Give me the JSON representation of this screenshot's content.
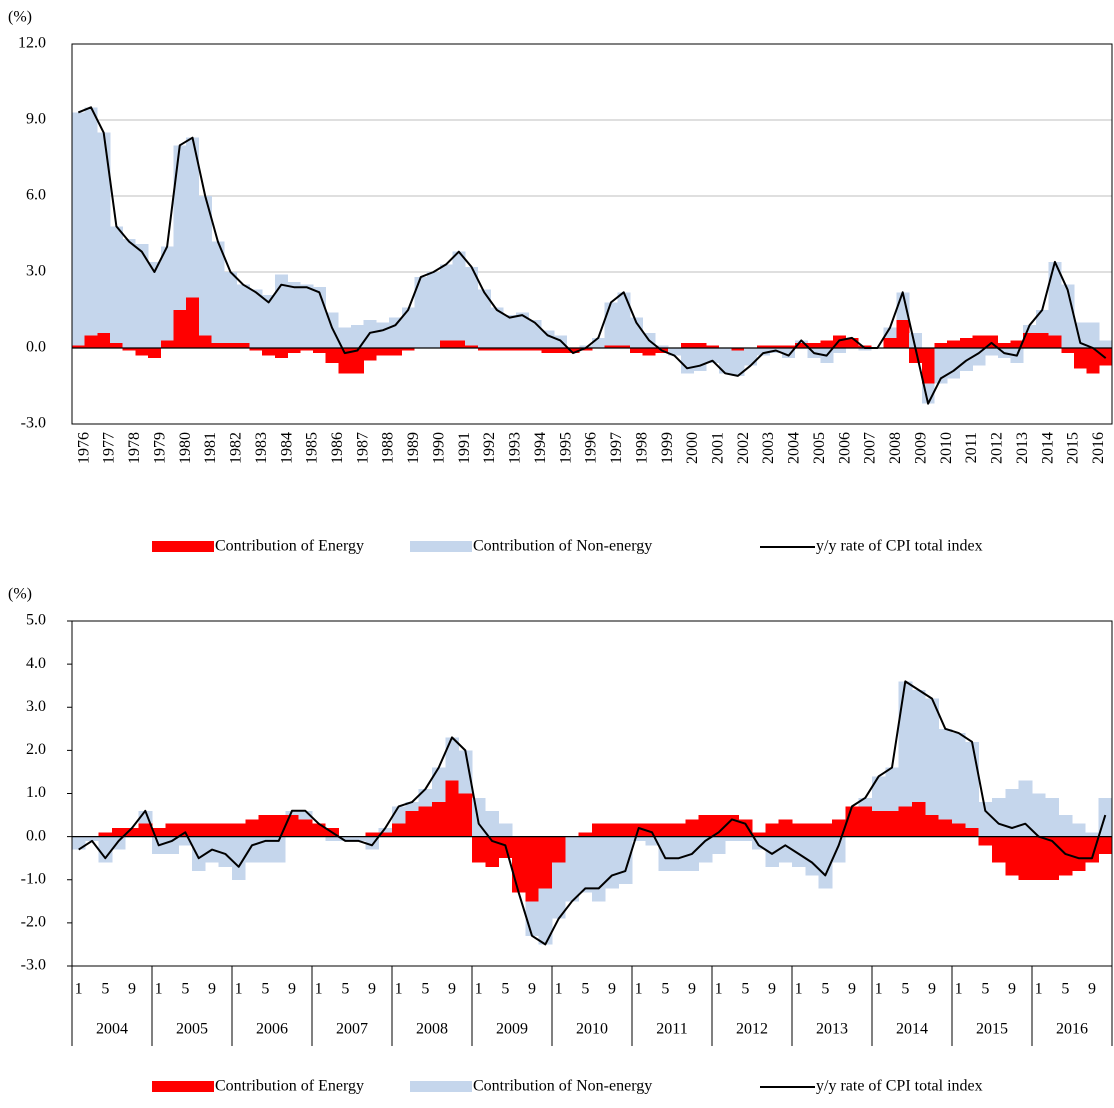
{
  "chart_data": [
    {
      "type": "combo",
      "y_label": "(%)",
      "grid": true,
      "x_label_rotation": -90,
      "categories": [
        "1976",
        null,
        "1977",
        null,
        "1978",
        null,
        "1979",
        null,
        "1980",
        null,
        "1981",
        null,
        "1982",
        null,
        "1983",
        null,
        "1984",
        null,
        "1985",
        null,
        "1986",
        null,
        "1987",
        null,
        "1988",
        null,
        "1989",
        null,
        "1990",
        null,
        "1991",
        null,
        "1992",
        null,
        "1993",
        null,
        "1994",
        null,
        "1995",
        null,
        "1996",
        null,
        "1997",
        null,
        "1998",
        null,
        "1999",
        null,
        "2000",
        null,
        "2001",
        null,
        "2002",
        null,
        "2003",
        null,
        "2004",
        null,
        "2005",
        null,
        "2006",
        null,
        "2007",
        null,
        "2008",
        null,
        "2009",
        null,
        "2010",
        null,
        "2011",
        null,
        "2012",
        null,
        "2013",
        null,
        "2014",
        null,
        "2015",
        null,
        "2016",
        null
      ],
      "ylim": [
        -3,
        12
      ],
      "yticks": [
        {
          "value": 12,
          "label": "12.0"
        },
        {
          "value": 9,
          "label": "9.0"
        },
        {
          "value": 6,
          "label": "6.0"
        },
        {
          "value": 3,
          "label": "3.0"
        },
        {
          "value": 0,
          "label": "0.0"
        },
        {
          "value": -3,
          "label": "-3.0"
        }
      ],
      "series": [
        {
          "name": "Contribution of Energy",
          "color": "#ff0000",
          "type": "bar",
          "values": [
            0.1,
            0.5,
            0.6,
            0.2,
            -0.1,
            -0.3,
            -0.4,
            0.3,
            1.5,
            2.0,
            0.5,
            0.2,
            0.2,
            0.2,
            -0.1,
            -0.3,
            -0.4,
            -0.2,
            -0.1,
            -0.2,
            -0.6,
            -1.0,
            -1.0,
            -0.5,
            -0.3,
            -0.3,
            -0.1,
            0.0,
            0.0,
            0.3,
            0.3,
            0.1,
            -0.1,
            -0.1,
            -0.1,
            -0.1,
            -0.1,
            -0.2,
            -0.2,
            -0.2,
            -0.1,
            0.0,
            0.1,
            0.1,
            -0.2,
            -0.3,
            -0.2,
            0.0,
            0.2,
            0.2,
            0.1,
            0.0,
            -0.1,
            0.0,
            0.1,
            0.1,
            0.1,
            0.2,
            0.2,
            0.3,
            0.5,
            0.4,
            0.1,
            0.0,
            0.4,
            1.1,
            -0.6,
            -1.4,
            0.2,
            0.3,
            0.4,
            0.5,
            0.5,
            0.2,
            0.3,
            0.6,
            0.6,
            0.5,
            -0.2,
            -0.8,
            -1.0,
            -0.7
          ]
        },
        {
          "name": "Contribution of Non-energy",
          "color": "#c5d6ec",
          "type": "bar",
          "values": [
            9.2,
            9.0,
            7.9,
            4.6,
            4.3,
            4.1,
            3.4,
            3.7,
            6.5,
            6.3,
            5.5,
            4.0,
            2.8,
            2.3,
            2.3,
            2.1,
            2.9,
            2.6,
            2.5,
            2.4,
            1.4,
            0.8,
            0.9,
            1.1,
            1.0,
            1.2,
            1.6,
            2.8,
            3.0,
            3.0,
            3.5,
            3.1,
            2.3,
            1.6,
            1.3,
            1.4,
            1.1,
            0.7,
            0.5,
            0.0,
            0.1,
            0.4,
            1.7,
            2.1,
            1.2,
            0.6,
            0.1,
            -0.3,
            -1.0,
            -0.9,
            -0.6,
            -1.0,
            -1.0,
            -0.7,
            -0.3,
            -0.2,
            -0.4,
            0.1,
            -0.4,
            -0.6,
            -0.2,
            0.0,
            -0.1,
            0.0,
            0.4,
            1.1,
            0.6,
            -0.8,
            -1.4,
            -1.2,
            -0.9,
            -0.7,
            -0.3,
            -0.4,
            -0.6,
            0.3,
            0.9,
            2.9,
            2.5,
            1.0,
            1.0,
            0.3
          ]
        },
        {
          "name": "y/y rate of CPI total index",
          "color": "#000000",
          "type": "line",
          "values": [
            9.3,
            9.5,
            8.5,
            4.8,
            4.2,
            3.8,
            3.0,
            4.0,
            8.0,
            8.3,
            6.0,
            4.2,
            3.0,
            2.5,
            2.2,
            1.8,
            2.5,
            2.4,
            2.4,
            2.2,
            0.8,
            -0.2,
            -0.1,
            0.6,
            0.7,
            0.9,
            1.5,
            2.8,
            3.0,
            3.3,
            3.8,
            3.2,
            2.2,
            1.5,
            1.2,
            1.3,
            1.0,
            0.5,
            0.3,
            -0.2,
            0.0,
            0.4,
            1.8,
            2.2,
            1.0,
            0.3,
            -0.1,
            -0.3,
            -0.8,
            -0.7,
            -0.5,
            -1.0,
            -1.1,
            -0.7,
            -0.2,
            -0.1,
            -0.3,
            0.3,
            -0.2,
            -0.3,
            0.3,
            0.4,
            0.0,
            0.0,
            0.8,
            2.2,
            0.0,
            -2.2,
            -1.2,
            -0.9,
            -0.5,
            -0.2,
            0.2,
            -0.2,
            -0.3,
            0.9,
            1.5,
            3.4,
            2.3,
            0.2,
            0.0,
            -0.4
          ]
        }
      ]
    },
    {
      "type": "combo",
      "y_label": "(%)",
      "grid": false,
      "categories": [
        "1",
        null,
        "5",
        null,
        "9",
        null,
        "1",
        null,
        "5",
        null,
        "9",
        null,
        "1",
        null,
        "5",
        null,
        "9",
        null,
        "1",
        null,
        "5",
        null,
        "9",
        null,
        "1",
        null,
        "5",
        null,
        "9",
        null,
        "1",
        null,
        "5",
        null,
        "9",
        null,
        "1",
        null,
        "5",
        null,
        "9",
        null,
        "1",
        null,
        "5",
        null,
        "9",
        null,
        "1",
        null,
        "5",
        null,
        "9",
        null,
        "1",
        null,
        "5",
        null,
        "9",
        null,
        "1",
        null,
        "5",
        null,
        "9",
        null,
        "1",
        null,
        "5",
        null,
        "9",
        null,
        "1",
        null,
        "5",
        null,
        "9",
        null
      ],
      "groups": [
        "2004",
        "2005",
        "2006",
        "2007",
        "2008",
        "2009",
        "2010",
        "2011",
        "2012",
        "2013",
        "2014",
        "2015",
        "2016"
      ],
      "ylim": [
        -3,
        5
      ],
      "yticks": [
        {
          "value": 5,
          "label": "5.0"
        },
        {
          "value": 4,
          "label": "4.0"
        },
        {
          "value": 3,
          "label": "3.0"
        },
        {
          "value": 2,
          "label": "2.0"
        },
        {
          "value": 1,
          "label": "1.0"
        },
        {
          "value": 0,
          "label": "0.0"
        },
        {
          "value": -1,
          "label": "-1.0"
        },
        {
          "value": -2,
          "label": "-2.0"
        },
        {
          "value": -3,
          "label": "-3.0"
        }
      ],
      "series": [
        {
          "name": "Contribution of Energy",
          "color": "#ff0000",
          "type": "bar",
          "values": [
            0.0,
            0.0,
            0.1,
            0.2,
            0.2,
            0.3,
            0.2,
            0.3,
            0.3,
            0.3,
            0.3,
            0.3,
            0.3,
            0.4,
            0.5,
            0.5,
            0.5,
            0.4,
            0.3,
            0.2,
            0.0,
            0.0,
            0.1,
            0.1,
            0.3,
            0.6,
            0.7,
            0.8,
            1.3,
            1.0,
            -0.6,
            -0.7,
            -0.5,
            -1.3,
            -1.5,
            -1.2,
            -0.6,
            0.0,
            0.1,
            0.3,
            0.3,
            0.3,
            0.3,
            0.3,
            0.3,
            0.3,
            0.4,
            0.5,
            0.5,
            0.5,
            0.4,
            0.1,
            0.3,
            0.4,
            0.3,
            0.3,
            0.3,
            0.4,
            0.7,
            0.7,
            0.6,
            0.6,
            0.7,
            0.8,
            0.5,
            0.4,
            0.3,
            0.2,
            -0.2,
            -0.6,
            -0.9,
            -1.0,
            -1.0,
            -1.0,
            -0.9,
            -0.8,
            -0.6,
            -0.4
          ]
        },
        {
          "name": "Contribution of Non-energy",
          "color": "#c5d6ec",
          "type": "bar",
          "values": [
            -0.3,
            -0.1,
            -0.6,
            -0.3,
            0.0,
            0.3,
            -0.4,
            -0.4,
            -0.2,
            -0.8,
            -0.6,
            -0.7,
            -1.0,
            -0.6,
            -0.6,
            -0.6,
            0.1,
            0.2,
            0.0,
            -0.1,
            -0.1,
            -0.1,
            -0.3,
            0.1,
            0.4,
            0.2,
            0.4,
            0.8,
            1.0,
            1.0,
            0.9,
            0.6,
            0.3,
            0.0,
            -0.8,
            -1.3,
            -1.3,
            -1.5,
            -1.3,
            -1.5,
            -1.2,
            -1.1,
            -0.1,
            -0.2,
            -0.8,
            -0.8,
            -0.8,
            -0.6,
            -0.4,
            -0.1,
            -0.1,
            -0.3,
            -0.7,
            -0.6,
            -0.7,
            -0.9,
            -1.2,
            -0.6,
            0.0,
            0.2,
            0.8,
            1.0,
            2.9,
            2.6,
            2.7,
            2.1,
            2.1,
            2.0,
            0.8,
            0.9,
            1.1,
            1.3,
            1.0,
            0.9,
            0.5,
            0.3,
            0.1,
            0.9
          ]
        },
        {
          "name": "y/y rate of CPI total index",
          "color": "#000000",
          "type": "line",
          "values": [
            -0.3,
            -0.1,
            -0.5,
            -0.1,
            0.2,
            0.6,
            -0.2,
            -0.1,
            0.1,
            -0.5,
            -0.3,
            -0.4,
            -0.7,
            -0.2,
            -0.1,
            -0.1,
            0.6,
            0.6,
            0.3,
            0.1,
            -0.1,
            -0.1,
            -0.2,
            0.2,
            0.7,
            0.8,
            1.1,
            1.6,
            2.3,
            2.0,
            0.3,
            -0.1,
            -0.2,
            -1.3,
            -2.3,
            -2.5,
            -1.9,
            -1.5,
            -1.2,
            -1.2,
            -0.9,
            -0.8,
            0.2,
            0.1,
            -0.5,
            -0.5,
            -0.4,
            -0.1,
            0.1,
            0.4,
            0.3,
            -0.2,
            -0.4,
            -0.2,
            -0.4,
            -0.6,
            -0.9,
            -0.2,
            0.7,
            0.9,
            1.4,
            1.6,
            3.6,
            3.4,
            3.2,
            2.5,
            2.4,
            2.2,
            0.6,
            0.3,
            0.2,
            0.3,
            0.0,
            -0.1,
            -0.4,
            -0.5,
            -0.5,
            0.5
          ]
        }
      ]
    }
  ]
}
